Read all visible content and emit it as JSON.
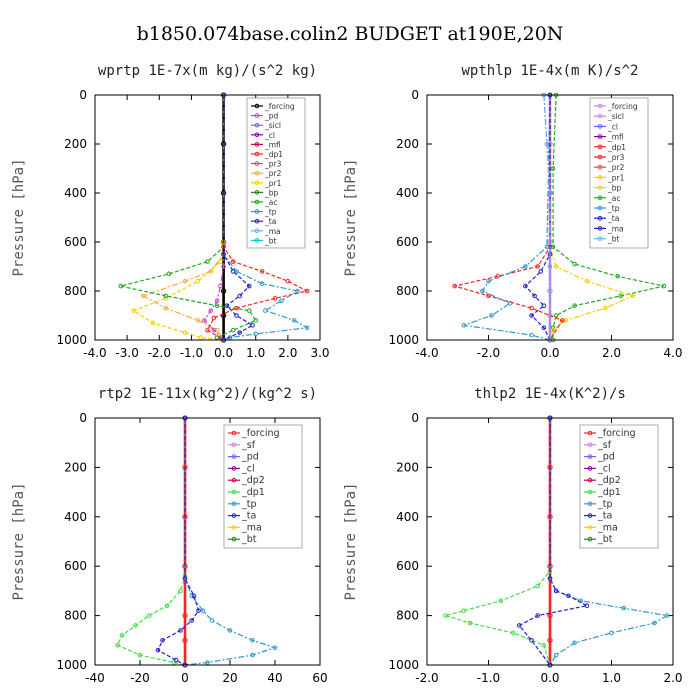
{
  "title": "b1850.074base.colin2  BUDGET at190E,20N",
  "chart_data": [
    {
      "type": "line",
      "title": "wprtp  1E-7x(m kg)/(s^2 kg)",
      "ylabel": "Pressure [hPa]",
      "xlim": [
        -4,
        3
      ],
      "ylim": [
        1000,
        0
      ],
      "xticks": [
        "-4.0",
        "-3.0",
        "-2.0",
        "-1.0",
        "0.0",
        "1.0",
        "2.0",
        "3.0"
      ],
      "yticks": [
        "0",
        "200",
        "400",
        "600",
        "800",
        "1000"
      ],
      "legend": [
        "_forcing",
        "_pd",
        "_sicl",
        "_cl",
        "_mfl",
        "_dp1",
        "_pr3",
        "_pr2",
        "_pr1",
        "_bp",
        "_ac",
        "_tp",
        "_ta",
        "_ma",
        "_bt"
      ],
      "series": [
        {
          "name": "_forcing",
          "color": "#000000",
          "x": [
            0,
            0,
            0,
            0,
            0,
            0,
            0
          ],
          "y": [
            0,
            200,
            400,
            600,
            800,
            900,
            1000
          ]
        },
        {
          "name": "_pr1",
          "color": "#ffcc00",
          "x": [
            0,
            0,
            -0.1,
            -0.8,
            -1.8,
            -2.8,
            -2.2,
            -1.2,
            -0.7,
            0
          ],
          "y": [
            0,
            600,
            680,
            760,
            830,
            880,
            930,
            970,
            990,
            1000
          ]
        },
        {
          "name": "_pr2",
          "color": "#ffaa33",
          "x": [
            0,
            0,
            -0.4,
            -1.2,
            -2.5,
            -1.8,
            -0.8,
            -0.2,
            0
          ],
          "y": [
            0,
            650,
            720,
            760,
            820,
            870,
            920,
            960,
            1000
          ]
        },
        {
          "name": "_ac",
          "color": "#22aa22",
          "x": [
            0,
            0,
            -0.5,
            -1.7,
            -3.2,
            -1.8,
            -0.2,
            0.8,
            1.0,
            0.3,
            -0.2,
            0
          ],
          "y": [
            0,
            620,
            680,
            730,
            780,
            820,
            860,
            880,
            920,
            960,
            990,
            1000
          ]
        },
        {
          "name": "_pd",
          "color": "#cc44cc",
          "x": [
            0,
            0,
            -0.1,
            -0.2,
            -0.4,
            -0.6,
            -0.3,
            0
          ],
          "y": [
            0,
            700,
            780,
            840,
            880,
            920,
            960,
            1000
          ]
        },
        {
          "name": "_dp1",
          "color": "#ff2222",
          "x": [
            0,
            0,
            0.3,
            1.2,
            2.0,
            2.6,
            1.6,
            0.4,
            -0.3,
            -0.5,
            0
          ],
          "y": [
            0,
            620,
            680,
            720,
            760,
            800,
            830,
            870,
            910,
            960,
            1000
          ]
        },
        {
          "name": "_tp",
          "color": "#3399cc",
          "x": [
            0,
            0,
            0.4,
            1.2,
            2.3,
            1.8,
            1.3,
            2.2,
            2.6,
            1.0,
            0.2,
            0
          ],
          "y": [
            0,
            650,
            720,
            770,
            800,
            840,
            880,
            920,
            950,
            975,
            990,
            1000
          ]
        },
        {
          "name": "_ta",
          "color": "#2222cc",
          "x": [
            0,
            0,
            0.3,
            0.8,
            0.5,
            0.1,
            0.4,
            0.9,
            0.5,
            0
          ],
          "y": [
            0,
            650,
            720,
            780,
            820,
            860,
            900,
            940,
            970,
            1000
          ]
        }
      ]
    },
    {
      "type": "line",
      "title": "wpthlp  1E-4x(m K)/s^2",
      "ylabel": "Pressure [hPa]",
      "xlim": [
        -4,
        4
      ],
      "ylim": [
        1000,
        0
      ],
      "xticks": [
        "-4.0",
        "-2.0",
        "0.0",
        "2.0",
        "4.0"
      ],
      "yticks": [
        "0",
        "200",
        "400",
        "600",
        "800",
        "1000"
      ],
      "legend": [
        "_forcing",
        "_sicl",
        "_cl",
        "_mfl",
        "_dp1",
        "_pr3",
        "_pr2",
        "_pr1",
        "_bp",
        "_ac",
        "_tp",
        "_ta",
        "_ma",
        "_bt"
      ],
      "series": [
        {
          "name": "_forcing",
          "color": "#cc88dd",
          "x": [
            0,
            0,
            0,
            0,
            0,
            0,
            0
          ],
          "y": [
            0,
            200,
            400,
            600,
            800,
            900,
            1000
          ]
        },
        {
          "name": "_ac",
          "color": "#22aa22",
          "x": [
            0.2,
            0.1,
            0.1,
            0.8,
            2.2,
            3.7,
            2.3,
            0.8,
            0.2,
            0.1,
            0.1
          ],
          "y": [
            0,
            300,
            620,
            690,
            740,
            780,
            820,
            860,
            900,
            950,
            1000
          ]
        },
        {
          "name": "_pr1",
          "color": "#ffcc00",
          "x": [
            0,
            0,
            0.2,
            1.2,
            2.7,
            1.8,
            0.5,
            0.1,
            0
          ],
          "y": [
            0,
            620,
            700,
            760,
            820,
            870,
            920,
            960,
            1000
          ]
        },
        {
          "name": "_dp1",
          "color": "#ff2222",
          "x": [
            0,
            0,
            -0.4,
            -1.7,
            -3.1,
            -2.0,
            -0.6,
            0.4,
            0
          ],
          "y": [
            0,
            620,
            700,
            740,
            780,
            820,
            870,
            920,
            1000
          ]
        },
        {
          "name": "_tp",
          "color": "#3399cc",
          "x": [
            0,
            -0.1,
            -0.8,
            -2.0,
            -2.2,
            -1.3,
            -1.9,
            -2.8,
            -0.6,
            0
          ],
          "y": [
            0,
            620,
            700,
            760,
            800,
            850,
            900,
            940,
            980,
            1000
          ]
        },
        {
          "name": "_ta",
          "color": "#2222cc",
          "x": [
            0,
            0,
            -0.3,
            -0.8,
            -0.5,
            -0.2,
            -0.6,
            -0.2,
            0
          ],
          "y": [
            0,
            650,
            720,
            780,
            820,
            860,
            900,
            950,
            1000
          ]
        },
        {
          "name": "_pd",
          "color": "#6699ff",
          "x": [
            -0.2,
            -0.1,
            0,
            0,
            0
          ],
          "y": [
            0,
            200,
            400,
            700,
            1000
          ]
        }
      ]
    },
    {
      "type": "line",
      "title": "rtp2  1E-11x(kg^2)/(kg^2 s)",
      "ylabel": "Pressure [hPa]",
      "xlim": [
        -40,
        60
      ],
      "ylim": [
        1000,
        0
      ],
      "xticks": [
        "-40",
        "-20",
        "0",
        "20",
        "40",
        "60"
      ],
      "yticks": [
        "0",
        "200",
        "400",
        "600",
        "800",
        "1000"
      ],
      "legend": [
        "_forcing",
        "_sf",
        "_pd",
        "_cl",
        "_dp2",
        "_dp1",
        "_tp",
        "_ta",
        "_ma",
        "_bt"
      ],
      "series": [
        {
          "name": "_forcing",
          "color": "#ff2222",
          "x": [
            0,
            0,
            0,
            0,
            0,
            0,
            0
          ],
          "y": [
            0,
            200,
            400,
            600,
            800,
            900,
            1000
          ]
        },
        {
          "name": "_dp1",
          "color": "#44dd44",
          "x": [
            0,
            0,
            -2,
            -8,
            -16,
            -22,
            -28,
            -30,
            -20,
            -5,
            0
          ],
          "y": [
            0,
            640,
            700,
            760,
            800,
            840,
            880,
            920,
            960,
            990,
            1000
          ]
        },
        {
          "name": "_tp",
          "color": "#3399cc",
          "x": [
            0,
            0,
            3,
            8,
            12,
            20,
            30,
            40,
            30,
            10,
            0
          ],
          "y": [
            0,
            650,
            720,
            780,
            820,
            860,
            900,
            930,
            960,
            990,
            1000
          ]
        },
        {
          "name": "_ta",
          "color": "#2222cc",
          "x": [
            0,
            0,
            4,
            6,
            3,
            -2,
            -10,
            -12,
            -4,
            0
          ],
          "y": [
            0,
            650,
            720,
            780,
            820,
            860,
            900,
            940,
            980,
            1000
          ]
        }
      ]
    },
    {
      "type": "line",
      "title": "thlp2  1E-4x(K^2)/s",
      "ylabel": "Pressure [hPa]",
      "xlim": [
        -2,
        2
      ],
      "ylim": [
        1000,
        0
      ],
      "xticks": [
        "-2.0",
        "-1.0",
        "0.0",
        "1.0",
        "2.0"
      ],
      "yticks": [
        "0",
        "200",
        "400",
        "600",
        "800",
        "1000"
      ],
      "legend": [
        "_forcing",
        "_sf",
        "_pd",
        "_cl",
        "_dp2",
        "_dp1",
        "_tp",
        "_ta",
        "_ma",
        "_bt"
      ],
      "series": [
        {
          "name": "_forcing",
          "color": "#ff2222",
          "x": [
            0,
            0,
            0,
            0,
            0,
            0,
            0
          ],
          "y": [
            0,
            200,
            400,
            600,
            800,
            900,
            1000
          ]
        },
        {
          "name": "_dp1",
          "color": "#44dd44",
          "x": [
            0,
            0,
            -0.2,
            -0.8,
            -1.4,
            -1.7,
            -1.3,
            -0.6,
            -0.1,
            0
          ],
          "y": [
            0,
            620,
            680,
            740,
            780,
            800,
            830,
            870,
            920,
            1000
          ]
        },
        {
          "name": "_tp",
          "color": "#3399cc",
          "x": [
            0,
            0,
            0.1,
            0.5,
            1.2,
            1.9,
            1.7,
            1.0,
            0.4,
            0.1,
            0
          ],
          "y": [
            0,
            650,
            700,
            740,
            770,
            800,
            830,
            870,
            910,
            960,
            1000
          ]
        },
        {
          "name": "_ta",
          "color": "#2222cc",
          "x": [
            0,
            0,
            0.1,
            0.3,
            0.6,
            -0.2,
            -0.5,
            -0.3,
            0
          ],
          "y": [
            0,
            650,
            700,
            720,
            760,
            800,
            840,
            900,
            1000
          ]
        }
      ]
    }
  ]
}
